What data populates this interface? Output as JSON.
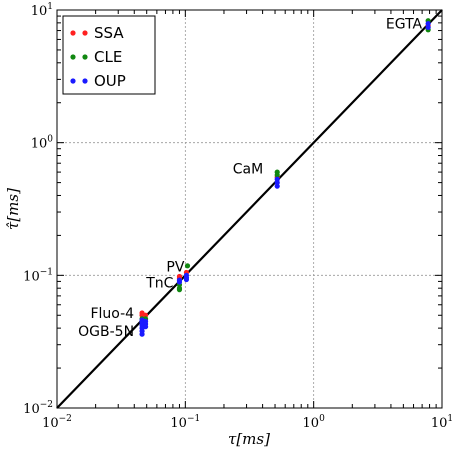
{
  "chart_data": {
    "type": "scatter",
    "xscale": "log",
    "yscale": "log",
    "xlim": [
      0.01,
      10
    ],
    "ylim": [
      0.01,
      10
    ],
    "xlabel": "τ[ms]",
    "ylabel": "τ̂[ms]",
    "grid": true,
    "legend_position": "top-left",
    "x_ticks": [
      {
        "value": 0.01,
        "base": "10",
        "exp": "−2"
      },
      {
        "value": 0.1,
        "base": "10",
        "exp": "−1"
      },
      {
        "value": 1,
        "base": "10",
        "exp": "0"
      },
      {
        "value": 10,
        "base": "10",
        "exp": "1"
      }
    ],
    "y_ticks": [
      {
        "value": 0.01,
        "base": "10",
        "exp": "−2"
      },
      {
        "value": 0.1,
        "base": "10",
        "exp": "−1"
      },
      {
        "value": 1,
        "base": "10",
        "exp": "0"
      },
      {
        "value": 10,
        "base": "10",
        "exp": "1"
      }
    ],
    "identity_line": true,
    "series": [
      {
        "name": "SSA",
        "color": "#ff2020",
        "points": [
          {
            "x": 0.046,
            "y": 0.052
          },
          {
            "x": 0.046,
            "y": 0.05
          },
          {
            "x": 0.047,
            "y": 0.049
          },
          {
            "x": 0.049,
            "y": 0.05
          },
          {
            "x": 0.047,
            "y": 0.047
          },
          {
            "x": 0.047,
            "y": 0.045
          },
          {
            "x": 0.09,
            "y": 0.098
          },
          {
            "x": 0.09,
            "y": 0.095
          },
          {
            "x": 0.102,
            "y": 0.105
          },
          {
            "x": 0.52,
            "y": 0.55
          },
          {
            "x": 7.8,
            "y": 7.6
          }
        ]
      },
      {
        "name": "CLE",
        "color": "#118811",
        "points": [
          {
            "x": 0.046,
            "y": 0.047
          },
          {
            "x": 0.049,
            "y": 0.047
          },
          {
            "x": 0.09,
            "y": 0.085
          },
          {
            "x": 0.09,
            "y": 0.08
          },
          {
            "x": 0.09,
            "y": 0.078
          },
          {
            "x": 0.104,
            "y": 0.118
          },
          {
            "x": 0.52,
            "y": 0.6
          },
          {
            "x": 0.52,
            "y": 0.57
          },
          {
            "x": 7.8,
            "y": 8.3
          },
          {
            "x": 7.8,
            "y": 7.1
          }
        ]
      },
      {
        "name": "OUP",
        "color": "#1a1aff",
        "points": [
          {
            "x": 0.046,
            "y": 0.046
          },
          {
            "x": 0.046,
            "y": 0.044
          },
          {
            "x": 0.046,
            "y": 0.042
          },
          {
            "x": 0.046,
            "y": 0.04
          },
          {
            "x": 0.046,
            "y": 0.038
          },
          {
            "x": 0.046,
            "y": 0.036
          },
          {
            "x": 0.049,
            "y": 0.045
          },
          {
            "x": 0.049,
            "y": 0.043
          },
          {
            "x": 0.049,
            "y": 0.041
          },
          {
            "x": 0.09,
            "y": 0.092
          },
          {
            "x": 0.09,
            "y": 0.089
          },
          {
            "x": 0.102,
            "y": 0.1
          },
          {
            "x": 0.102,
            "y": 0.096
          },
          {
            "x": 0.102,
            "y": 0.093
          },
          {
            "x": 0.52,
            "y": 0.53
          },
          {
            "x": 0.52,
            "y": 0.5
          },
          {
            "x": 0.52,
            "y": 0.47
          },
          {
            "x": 7.8,
            "y": 7.9
          },
          {
            "x": 7.8,
            "y": 7.4
          }
        ]
      }
    ],
    "annotations": [
      {
        "text": "EGTA",
        "x": 7.8,
        "y": 7.8,
        "anchor": "end"
      },
      {
        "text": "CaM",
        "x": 0.52,
        "y": 0.52,
        "anchor": "end"
      },
      {
        "text": "PV",
        "x": 0.102,
        "y": 0.1,
        "anchor": "end"
      },
      {
        "text": "TnC",
        "x": 0.09,
        "y": 0.09,
        "anchor": "end"
      },
      {
        "text": "Fluo-4",
        "x": 0.046,
        "y": 0.046,
        "anchor": "end"
      },
      {
        "text": "OGB-5N",
        "x": 0.046,
        "y": 0.046,
        "anchor": "end"
      }
    ]
  }
}
